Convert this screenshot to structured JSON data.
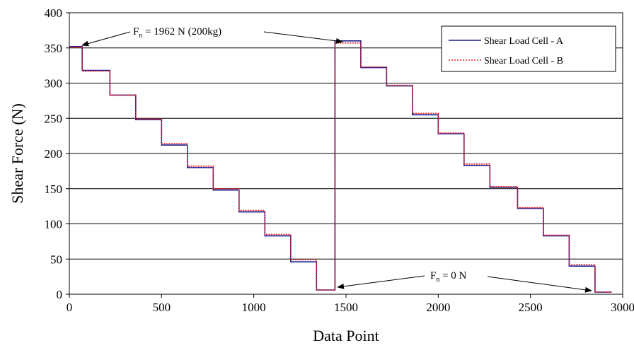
{
  "chart_data": {
    "type": "line",
    "title": "",
    "xlabel": "Data Point",
    "ylabel": "Shear Force (N)",
    "xlim": [
      0,
      3000
    ],
    "ylim": [
      0,
      400
    ],
    "xticks": [
      "0",
      "500",
      "1000",
      "1500",
      "2000",
      "2500",
      "3000"
    ],
    "yticks": [
      "0",
      "50",
      "100",
      "150",
      "200",
      "250",
      "300",
      "350",
      "400"
    ],
    "grid": "horizontal",
    "legend_position": "top-right",
    "series": [
      {
        "name": "Shear Load Cell - A",
        "color": "#1a1a8c",
        "style": "solid",
        "x": [
          0,
          70,
          70,
          220,
          220,
          360,
          360,
          500,
          500,
          640,
          640,
          780,
          780,
          920,
          920,
          1060,
          1060,
          1200,
          1200,
          1340,
          1340,
          1440,
          1440,
          1580,
          1580,
          1720,
          1720,
          1860,
          1860,
          2000,
          2000,
          2140,
          2140,
          2280,
          2280,
          2430,
          2430,
          2570,
          2570,
          2710,
          2710,
          2850,
          2850,
          2940
        ],
        "y": [
          352,
          352,
          318,
          318,
          283,
          283,
          248,
          248,
          212,
          212,
          180,
          180,
          148,
          148,
          117,
          117,
          83,
          83,
          46,
          46,
          6,
          6,
          360,
          360,
          322,
          322,
          296,
          296,
          255,
          255,
          228,
          228,
          183,
          183,
          152,
          152,
          122,
          122,
          83,
          83,
          40,
          40,
          3,
          3
        ]
      },
      {
        "name": "Shear Load Cell - B",
        "color": "#e8202a",
        "style": "dotted",
        "x": [
          0,
          70,
          70,
          220,
          220,
          360,
          360,
          500,
          500,
          640,
          640,
          780,
          780,
          920,
          920,
          1060,
          1060,
          1200,
          1200,
          1340,
          1340,
          1440,
          1440,
          1580,
          1580,
          1720,
          1720,
          1860,
          1860,
          2000,
          2000,
          2140,
          2140,
          2280,
          2280,
          2430,
          2430,
          2570,
          2570,
          2710,
          2710,
          2850,
          2850,
          2940
        ],
        "y": [
          351,
          351,
          317,
          317,
          283,
          283,
          249,
          249,
          214,
          214,
          182,
          182,
          150,
          150,
          119,
          119,
          85,
          85,
          49,
          49,
          6,
          6,
          357,
          357,
          323,
          323,
          297,
          297,
          257,
          257,
          229,
          229,
          185,
          185,
          153,
          153,
          123,
          123,
          84,
          84,
          42,
          42,
          3,
          3
        ]
      }
    ],
    "annotations": [
      {
        "main": "F",
        "sub": "n",
        "rest": " = 1962 N (200kg)"
      },
      {
        "main": "F",
        "sub": "n",
        "rest": " = 0 N"
      }
    ]
  }
}
